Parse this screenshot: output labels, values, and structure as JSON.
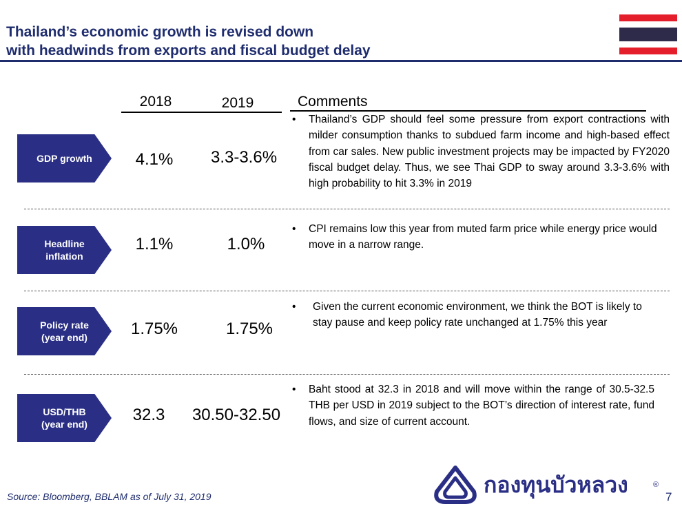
{
  "title": {
    "line1": "Thailand’s economic growth is revised down",
    "line2": "with headwinds from exports and fiscal budget delay"
  },
  "colors": {
    "navy": "#1f2d6e",
    "arrow": "#2a2f85",
    "flag_red": "#e41e2b",
    "flag_blue": "#2d2a4a"
  },
  "columns": {
    "y2018": "2018",
    "y2019": "2019",
    "comments": "Comments"
  },
  "rows": [
    {
      "label": "GDP growth",
      "v2018": "4.1%",
      "v2019": "3.3-3.6%",
      "comment": "Thailand’s GDP should feel some pressure from export contractions with milder consumption thanks to subdued farm income and high-based effect from car sales. New public investment projects may be impacted by FY2020 fiscal budget delay. Thus, we see Thai GDP to sway around 3.3-3.6% with high probability to hit 3.3% in 2019"
    },
    {
      "label": "Headline\ninflation",
      "v2018": "1.1%",
      "v2019": "1.0%",
      "comment": "CPI remains low this year from muted farm price while energy price would move in a narrow range."
    },
    {
      "label": "Policy rate\n(year end)",
      "v2018": "1.75%",
      "v2019": "1.75%",
      "comment": "Given the current economic environment, we think the BOT is likely to stay pause and keep policy rate unchanged at 1.75% this year"
    },
    {
      "label": "USD/THB\n(year end)",
      "v2018": "32.3",
      "v2019": "30.50-32.50",
      "comment": "Baht stood at 32.3 in 2018 and will move within the range of 30.5-32.5 THB per USD in 2019 subject to the BOT’s direction of interest rate, fund flows, and size of current account."
    }
  ],
  "bullet": "•",
  "source": "Source:  Bloomberg, BBLAM as of July 31, 2019",
  "logo": {
    "text": "กองทุนบัวหลวง",
    "reg": "®",
    "icon": "lotus-logo-icon"
  },
  "page_number": "7",
  "flag_icon": "thailand-flag-icon"
}
